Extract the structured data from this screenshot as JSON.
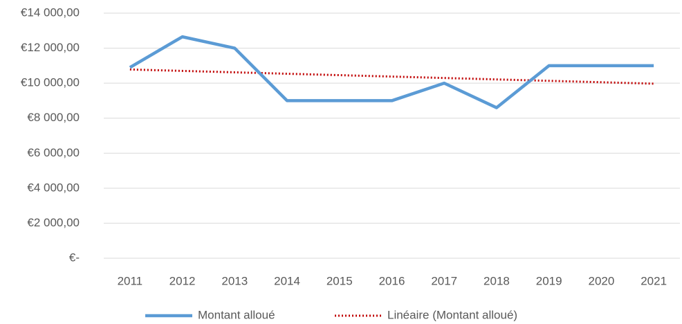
{
  "chart_data": {
    "type": "line",
    "categories": [
      "2011",
      "2012",
      "2013",
      "2014",
      "2015",
      "2016",
      "2017",
      "2018",
      "2019",
      "2020",
      "2021"
    ],
    "series": [
      {
        "name": "Montant alloué",
        "color": "#5b9bd5",
        "style": "solid",
        "values": [
          10900,
          12650,
          12000,
          9000,
          9000,
          9000,
          10000,
          8600,
          11000,
          11000,
          11000
        ]
      },
      {
        "name": "Linéaire (Montant alloué)",
        "color": "#c00000",
        "style": "dotted",
        "values": [
          10782,
          10701,
          10620,
          10539,
          10458,
          10377,
          10296,
          10215,
          10134,
          10053,
          9972
        ]
      }
    ],
    "ylim": [
      0,
      14000
    ],
    "yticks": [
      {
        "value": 0,
        "label": "€-"
      },
      {
        "value": 2000,
        "label": "€2 000,00"
      },
      {
        "value": 4000,
        "label": "€4 000,00"
      },
      {
        "value": 6000,
        "label": "€6 000,00"
      },
      {
        "value": 8000,
        "label": "€8 000,00"
      },
      {
        "value": 10000,
        "label": "€10 000,00"
      },
      {
        "value": 12000,
        "label": "€12 000,00"
      },
      {
        "value": 14000,
        "label": "€14 000,00"
      }
    ],
    "grid": true,
    "legend": "bottom"
  }
}
